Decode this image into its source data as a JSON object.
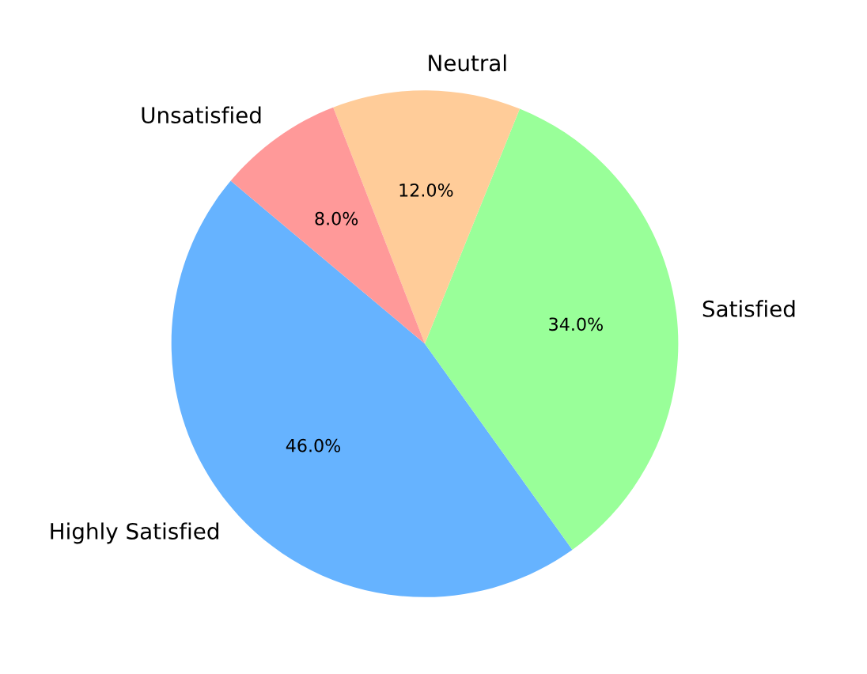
{
  "chart_data": {
    "type": "pie",
    "categories": [
      "Highly Satisfied",
      "Satisfied",
      "Neutral",
      "Unsatisfied"
    ],
    "values": [
      46,
      34,
      12,
      8
    ],
    "colors": [
      "#66b3ff",
      "#99ff99",
      "#ffcc99",
      "#ff9999"
    ],
    "value_labels": [
      "46.0%",
      "34.0%",
      "12.0%",
      "8.0%"
    ]
  }
}
